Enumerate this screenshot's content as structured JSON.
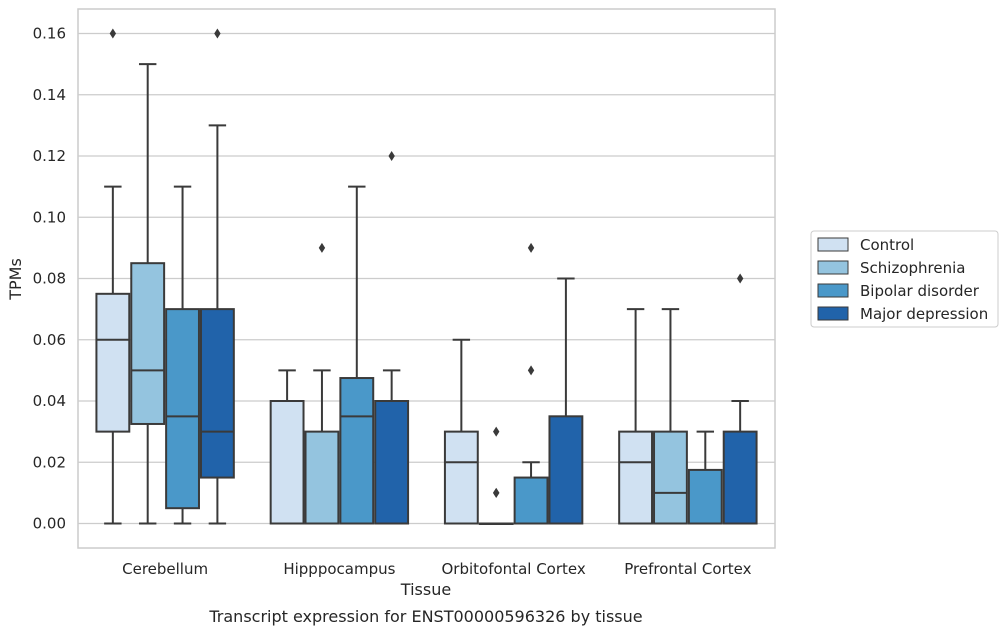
{
  "chart_data": {
    "type": "box",
    "title": "",
    "caption": "Transcript expression for ENST00000596326 by tissue",
    "xlabel": "Tissue",
    "ylabel": "TPMs",
    "ylim": [
      -0.008,
      0.168
    ],
    "yticks": [
      "0.00",
      "0.02",
      "0.04",
      "0.06",
      "0.08",
      "0.10",
      "0.12",
      "0.14",
      "0.16"
    ],
    "grid": "horizontal",
    "legend_position": "right",
    "categories": [
      "Cerebellum",
      "Hipppocampus",
      "Orbitofontal Cortex",
      "Prefrontal Cortex"
    ],
    "series": [
      {
        "name": "Control",
        "color": "#d0e1f2",
        "boxes": [
          {
            "whisker_low": 0.0,
            "q1": 0.03,
            "median": 0.06,
            "q3": 0.075,
            "whisker_high": 0.11,
            "outliers": [
              0.16
            ]
          },
          {
            "whisker_low": 0.0,
            "q1": 0.0,
            "median": 0.0,
            "q3": 0.04,
            "whisker_high": 0.05,
            "outliers": []
          },
          {
            "whisker_low": 0.0,
            "q1": 0.0,
            "median": 0.02,
            "q3": 0.03,
            "whisker_high": 0.06,
            "outliers": []
          },
          {
            "whisker_low": 0.0,
            "q1": 0.0,
            "median": 0.02,
            "q3": 0.03,
            "whisker_high": 0.07,
            "outliers": []
          }
        ]
      },
      {
        "name": "Schizophrenia",
        "color": "#94c4df",
        "boxes": [
          {
            "whisker_low": 0.0,
            "q1": 0.0325,
            "median": 0.05,
            "q3": 0.085,
            "whisker_high": 0.15,
            "outliers": []
          },
          {
            "whisker_low": 0.0,
            "q1": 0.0,
            "median": 0.0,
            "q3": 0.03,
            "whisker_high": 0.05,
            "outliers": [
              0.09
            ]
          },
          {
            "whisker_low": 0.0,
            "q1": 0.0,
            "median": 0.0,
            "q3": 0.0,
            "whisker_high": 0.0,
            "outliers": [
              0.03,
              0.01,
              0.01
            ]
          },
          {
            "whisker_low": 0.0,
            "q1": 0.0,
            "median": 0.01,
            "q3": 0.03,
            "whisker_high": 0.07,
            "outliers": []
          }
        ]
      },
      {
        "name": "Bipolar disorder",
        "color": "#4a98c9",
        "boxes": [
          {
            "whisker_low": 0.0,
            "q1": 0.005,
            "median": 0.035,
            "q3": 0.07,
            "whisker_high": 0.11,
            "outliers": []
          },
          {
            "whisker_low": 0.0,
            "q1": 0.0,
            "median": 0.035,
            "q3": 0.0475,
            "whisker_high": 0.11,
            "outliers": []
          },
          {
            "whisker_low": 0.0,
            "q1": 0.0,
            "median": 0.0,
            "q3": 0.015,
            "whisker_high": 0.02,
            "outliers": [
              0.05,
              0.09
            ]
          },
          {
            "whisker_low": 0.0,
            "q1": 0.0,
            "median": 0.0,
            "q3": 0.0175,
            "whisker_high": 0.03,
            "outliers": []
          }
        ]
      },
      {
        "name": "Major depression",
        "color": "#2163aa",
        "boxes": [
          {
            "whisker_low": 0.0,
            "q1": 0.015,
            "median": 0.03,
            "q3": 0.07,
            "whisker_high": 0.13,
            "outliers": [
              0.16
            ]
          },
          {
            "whisker_low": 0.0,
            "q1": 0.0,
            "median": 0.0,
            "q3": 0.04,
            "whisker_high": 0.05,
            "outliers": [
              0.12
            ]
          },
          {
            "whisker_low": 0.0,
            "q1": 0.0,
            "median": 0.0,
            "q3": 0.035,
            "whisker_high": 0.08,
            "outliers": []
          },
          {
            "whisker_low": 0.0,
            "q1": 0.0,
            "median": 0.0,
            "q3": 0.03,
            "whisker_high": 0.04,
            "outliers": [
              0.08
            ]
          }
        ]
      }
    ]
  }
}
